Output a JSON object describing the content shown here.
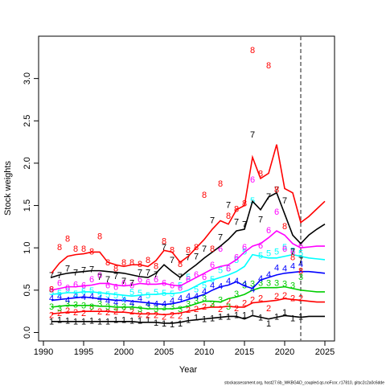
{
  "chart_data": {
    "type": "line",
    "ylabel": "Stock weights",
    "xlabel": "Year",
    "footer": "stockassessment.org, host27.6b_WKBGAD_coupled.qs.noFcor, r17810, gitsc2c2a0c6dde",
    "x": [
      1991,
      1992,
      1993,
      1994,
      1995,
      1996,
      1997,
      1998,
      1999,
      2000,
      2001,
      2002,
      2003,
      2004,
      2005,
      2006,
      2007,
      2008,
      2009,
      2010,
      2011,
      2012,
      2013,
      2014,
      2015,
      2016,
      2017,
      2018,
      2019,
      2020,
      2021,
      2022,
      2023,
      2024,
      2025
    ],
    "xlim": [
      1989.4,
      2026.2
    ],
    "xticks": [
      1990,
      1995,
      2000,
      2005,
      2010,
      2015,
      2020,
      2025
    ],
    "ylim": [
      -0.1,
      3.5
    ],
    "yticks": [
      {
        "value": 0,
        "label": "0.0"
      },
      {
        "value": 0.5,
        "label": "0.5"
      },
      {
        "value": 1,
        "label": "1.0"
      },
      {
        "value": 1.5,
        "label": "1.5"
      },
      {
        "value": 2,
        "label": "2.0"
      },
      {
        "value": 2.5,
        "label": "2.5"
      },
      {
        "value": 3,
        "label": "3.0"
      }
    ],
    "vline_x": 2022,
    "vline_color": "#666666",
    "series": [
      {
        "name": "1",
        "color": "#000000",
        "values": [
          0.13,
          0.13,
          0.13,
          0.13,
          0.13,
          0.13,
          0.13,
          0.13,
          0.13,
          0.13,
          0.13,
          0.12,
          0.12,
          0.12,
          0.11,
          0.11,
          0.12,
          0.14,
          0.15,
          0.16,
          0.17,
          0.18,
          0.19,
          0.19,
          0.16,
          0.2,
          0.18,
          0.16,
          0.18,
          0.2,
          0.19,
          0.18,
          0.19,
          0.19,
          0.19
        ],
        "obs": [
          0.12,
          0.14,
          0.13,
          0.12,
          0.12,
          0.13,
          0.12,
          0.12,
          0.14,
          0.14,
          0.13,
          0.13,
          0.14,
          0.11,
          0.1,
          0.09,
          0.1,
          0.14,
          0.17,
          0.15,
          0.16,
          0.18,
          0.18,
          0.2,
          0.2,
          0.22,
          0.17,
          0.1,
          0.18,
          0.23,
          0.16,
          0.18,
          null,
          null,
          null
        ]
      },
      {
        "name": "2",
        "color": "#ff0000",
        "values": [
          0.22,
          0.23,
          0.24,
          0.24,
          0.25,
          0.25,
          0.25,
          0.25,
          0.24,
          0.24,
          0.23,
          0.22,
          0.22,
          0.22,
          0.21,
          0.22,
          0.23,
          0.25,
          0.27,
          0.29,
          0.3,
          0.3,
          0.31,
          0.3,
          0.3,
          0.35,
          0.36,
          0.37,
          0.38,
          0.4,
          0.39,
          0.38,
          0.37,
          0.36,
          0.36
        ],
        "obs": [
          0.2,
          0.22,
          0.25,
          0.23,
          0.22,
          0.27,
          0.24,
          0.23,
          0.24,
          0.26,
          0.24,
          0.21,
          0.2,
          0.2,
          0.18,
          0.2,
          0.19,
          0.26,
          0.27,
          0.3,
          0.33,
          0.27,
          0.36,
          0.28,
          0.34,
          0.38,
          0.4,
          0.28,
          0.42,
          0.43,
          0.4,
          0.4,
          null,
          null,
          null
        ]
      },
      {
        "name": "3",
        "color": "#00cd00",
        "values": [
          0.3,
          0.31,
          0.32,
          0.32,
          0.32,
          0.32,
          0.31,
          0.31,
          0.3,
          0.3,
          0.3,
          0.29,
          0.28,
          0.28,
          0.28,
          0.28,
          0.29,
          0.31,
          0.34,
          0.37,
          0.37,
          0.36,
          0.4,
          0.42,
          0.45,
          0.5,
          0.53,
          0.53,
          0.53,
          0.54,
          0.52,
          0.5,
          0.49,
          0.48,
          0.48
        ],
        "obs": [
          0.3,
          0.28,
          0.33,
          0.32,
          0.31,
          0.3,
          0.33,
          0.3,
          0.29,
          0.3,
          0.3,
          0.27,
          0.3,
          0.27,
          0.29,
          0.3,
          0.27,
          0.33,
          0.37,
          0.4,
          0.33,
          0.38,
          0.3,
          0.45,
          0.55,
          0.57,
          0.58,
          0.58,
          0.58,
          0.57,
          0.55,
          0.65,
          null,
          null,
          null
        ]
      },
      {
        "name": "4",
        "color": "#0000ff",
        "values": [
          0.38,
          0.39,
          0.4,
          0.41,
          0.42,
          0.41,
          0.4,
          0.39,
          0.38,
          0.38,
          0.37,
          0.36,
          0.35,
          0.34,
          0.33,
          0.34,
          0.36,
          0.39,
          0.42,
          0.45,
          0.5,
          0.54,
          0.56,
          0.6,
          0.55,
          0.52,
          0.62,
          0.65,
          0.68,
          0.7,
          0.71,
          0.72,
          0.72,
          0.71,
          0.7
        ],
        "obs": [
          0.4,
          0.42,
          0.38,
          0.43,
          0.41,
          0.42,
          0.4,
          0.37,
          0.35,
          0.38,
          0.34,
          0.4,
          0.33,
          0.33,
          0.33,
          0.37,
          0.4,
          0.42,
          0.42,
          0.48,
          0.55,
          0.54,
          0.6,
          0.6,
          0.57,
          0.5,
          0.63,
          0.68,
          0.76,
          0.75,
          0.78,
          0.8,
          null,
          null,
          null
        ]
      },
      {
        "name": "5",
        "color": "#00ffff",
        "values": [
          0.45,
          0.46,
          0.47,
          0.47,
          0.48,
          0.48,
          0.47,
          0.46,
          0.45,
          0.44,
          0.43,
          0.44,
          0.45,
          0.45,
          0.46,
          0.46,
          0.47,
          0.5,
          0.55,
          0.6,
          0.62,
          0.65,
          0.68,
          0.72,
          0.78,
          0.92,
          0.9,
          0.88,
          0.88,
          0.9,
          0.92,
          0.9,
          0.88,
          0.87,
          0.86
        ],
        "obs": [
          0.47,
          0.46,
          0.5,
          0.45,
          0.48,
          0.49,
          0.44,
          0.44,
          0.43,
          0.4,
          0.47,
          0.46,
          0.43,
          0.47,
          0.46,
          0.45,
          0.55,
          0.65,
          0.5,
          0.55,
          0.62,
          0.73,
          0.75,
          0.85,
          0.95,
          1.55,
          0.9,
          0.93,
          0.95,
          1.0,
          0.96,
          0.93,
          null,
          null,
          null
        ]
      },
      {
        "name": "6",
        "color": "#ff00ff",
        "values": [
          0.5,
          0.52,
          0.54,
          0.54,
          0.55,
          0.56,
          0.58,
          0.58,
          0.56,
          0.55,
          0.56,
          0.58,
          0.57,
          0.57,
          0.58,
          0.56,
          0.55,
          0.6,
          0.65,
          0.7,
          0.75,
          0.78,
          0.8,
          0.86,
          0.95,
          1.02,
          1.05,
          1.12,
          1.2,
          1.15,
          1.05,
          1.0,
          1.01,
          1.02,
          1.02
        ],
        "obs": [
          0.5,
          0.58,
          0.52,
          0.56,
          0.55,
          0.62,
          0.67,
          0.55,
          0.53,
          0.58,
          0.55,
          0.62,
          0.59,
          0.62,
          0.58,
          0.55,
          0.52,
          0.62,
          0.68,
          0.65,
          0.79,
          0.98,
          0.75,
          0.88,
          1.0,
          1.8,
          1.02,
          1.2,
          1.42,
          0.98,
          0.95,
          1.02,
          null,
          null,
          null
        ]
      },
      {
        "name": "7",
        "color": "#000000",
        "values": [
          0.65,
          0.68,
          0.7,
          0.71,
          0.72,
          0.73,
          0.73,
          0.72,
          0.71,
          0.7,
          0.68,
          0.66,
          0.65,
          0.7,
          0.8,
          0.72,
          0.65,
          0.73,
          0.8,
          0.88,
          0.95,
          1.02,
          1.1,
          1.2,
          1.22,
          1.55,
          1.45,
          1.6,
          1.65,
          1.4,
          1.15,
          1.05,
          1.15,
          1.22,
          1.28
        ],
        "obs": [
          0.67,
          0.67,
          0.75,
          0.7,
          0.73,
          0.74,
          0.65,
          0.62,
          0.66,
          0.6,
          0.58,
          0.7,
          0.7,
          0.68,
          1.0,
          0.85,
          0.65,
          0.88,
          0.89,
          0.98,
          1.32,
          1.12,
          1.5,
          1.3,
          1.27,
          2.33,
          1.33,
          1.6,
          1.68,
          1.55,
          0.95,
          0.85,
          null,
          null,
          null
        ]
      },
      {
        "name": "8",
        "color": "#ff0000",
        "values": [
          0.7,
          0.82,
          0.9,
          0.92,
          0.93,
          0.95,
          0.95,
          0.83,
          0.8,
          0.78,
          0.8,
          0.8,
          0.78,
          0.85,
          0.97,
          0.95,
          0.83,
          0.9,
          1.0,
          1.1,
          1.22,
          1.32,
          1.28,
          1.45,
          1.5,
          2.07,
          1.82,
          1.88,
          2.22,
          1.7,
          1.65,
          1.3,
          1.37,
          1.46,
          1.55
        ],
        "obs": [
          0.5,
          1.0,
          1.1,
          0.98,
          0.98,
          0.95,
          1.13,
          0.82,
          0.75,
          0.82,
          0.82,
          0.8,
          0.85,
          0.78,
          1.07,
          0.97,
          0.8,
          0.97,
          1.0,
          1.62,
          0.98,
          1.75,
          1.37,
          1.45,
          1.52,
          3.33,
          1.87,
          3.15,
          1.68,
          1.25,
          0.88,
          0.72,
          null,
          null,
          null
        ]
      }
    ]
  }
}
